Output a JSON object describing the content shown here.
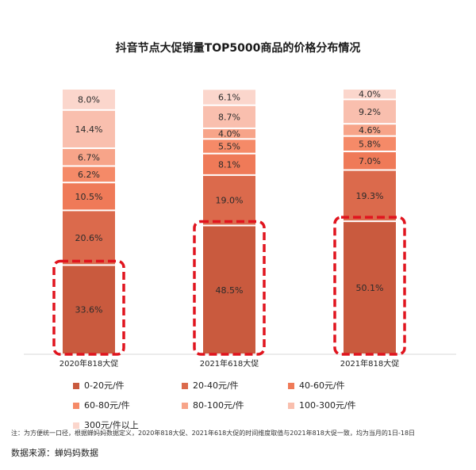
{
  "chart_data": {
    "type": "bar",
    "stacked": true,
    "title": "抖音节点大促销量TOP5000商品的价格分布情况",
    "xlabel": "",
    "ylabel": "",
    "ylim": [
      0,
      100
    ],
    "grid": false,
    "legend_position": "bottom",
    "categories": [
      "2020年818大促",
      "2021年618大促",
      "2021年818大促"
    ],
    "series": [
      {
        "name": "0-20元/件",
        "color": "#c95a3e",
        "values": [
          33.6,
          48.5,
          50.1
        ]
      },
      {
        "name": "20-40元/件",
        "color": "#db6a4c",
        "values": [
          20.6,
          19.0,
          19.3
        ]
      },
      {
        "name": "40-60元/件",
        "color": "#ef7a58",
        "values": [
          10.5,
          8.1,
          7.0
        ]
      },
      {
        "name": "60-80元/件",
        "color": "#f58a68",
        "values": [
          6.2,
          5.5,
          5.8
        ]
      },
      {
        "name": "80-100元/件",
        "color": "#f7a489",
        "values": [
          6.7,
          4.0,
          4.6
        ]
      },
      {
        "name": "100-300元/件",
        "color": "#f9bfae",
        "values": [
          14.4,
          8.7,
          9.2
        ]
      },
      {
        "name": "300元/件以上",
        "color": "#fbd6cc",
        "values": [
          8.0,
          6.1,
          4.0
        ]
      }
    ],
    "labels": [
      [
        "33.6%",
        "48.5%",
        "50.1%"
      ],
      [
        "20.6%",
        "19.0%",
        "19.3%"
      ],
      [
        "10.5%",
        "8.1%",
        "7.0%"
      ],
      [
        "6.2%",
        "5.5%",
        "5.8%"
      ],
      [
        "6.7%",
        "4.0%",
        "4.6%"
      ],
      [
        "14.4%",
        "8.7%",
        "9.2%"
      ],
      [
        "8.0%",
        "6.1%",
        "4.0%"
      ]
    ],
    "highlight": {
      "series_index": 0,
      "style": "red dashed rounded box",
      "color": "#e0141e"
    }
  },
  "footnote": "注：为方便统一口径，根据蝉妈妈数据定义，2020年818大促、2021年618大促的时间维度取值与2021年818大促一致，均为当月的1日-18日",
  "source": {
    "label": "数据来源：",
    "value": "蝉妈妈数据"
  }
}
